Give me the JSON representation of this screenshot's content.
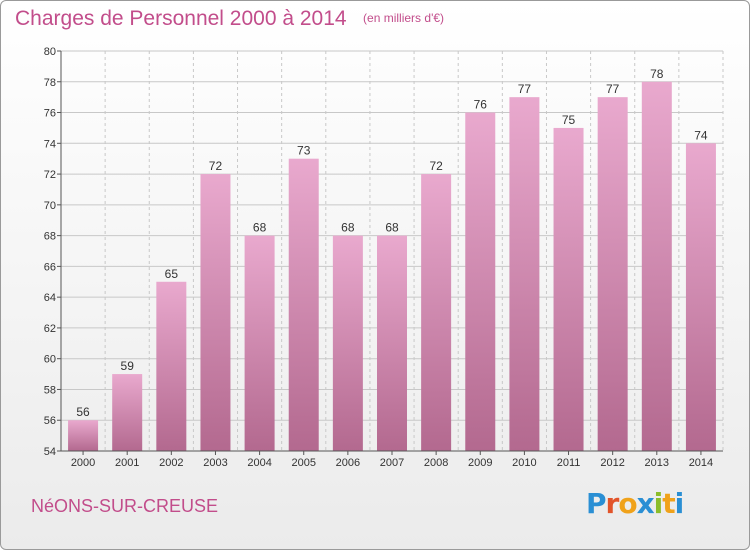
{
  "header": {
    "title": "Charges de Personnel 2000 à 2014",
    "unit": "(en milliers d'€)"
  },
  "footer": {
    "commune": "NéONS-SUR-CREUSE",
    "logo_letters": [
      "P",
      "r",
      "o",
      "x",
      "i",
      "t",
      "i"
    ],
    "logo_colors": [
      "#2a8fd4",
      "#e2542a",
      "#f0a21a",
      "#2a8fd4",
      "#8bbd2a",
      "#f0a21a",
      "#2a8fd4"
    ]
  },
  "colors": {
    "bar_top": "#e9a9ce",
    "bar_bottom": "#b3698f",
    "accent": "#c24d8b",
    "grid": "#c8c8c8",
    "axis": "#555555"
  },
  "chart_data": {
    "type": "bar",
    "categories": [
      "2000",
      "2001",
      "2002",
      "2003",
      "2004",
      "2005",
      "2006",
      "2007",
      "2008",
      "2009",
      "2010",
      "2011",
      "2012",
      "2013",
      "2014"
    ],
    "values": [
      56,
      59,
      65,
      72,
      68,
      73,
      68,
      68,
      72,
      76,
      77,
      75,
      77,
      78,
      74
    ],
    "ylim": [
      54,
      80
    ],
    "yticks": [
      54,
      56,
      58,
      60,
      62,
      64,
      66,
      68,
      70,
      72,
      74,
      76,
      78,
      80
    ],
    "grid": true,
    "title": "Charges de Personnel 2000 à 2014",
    "xlabel": "",
    "ylabel": ""
  }
}
